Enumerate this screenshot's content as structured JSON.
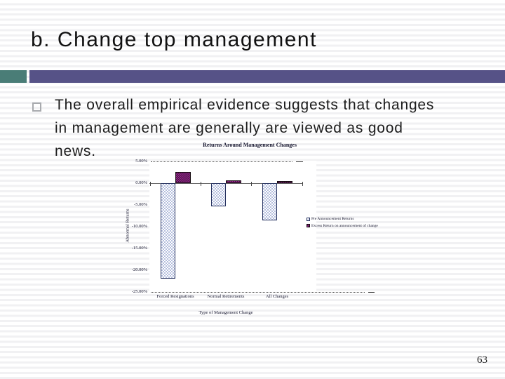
{
  "slide": {
    "title": "b. Change top management",
    "bullet_lines": [
      "The overall empirical evidence suggests that changes",
      "in management are generally are viewed as good",
      "news."
    ],
    "page_number": "63"
  },
  "colors": {
    "band_teal": "#4a7d77",
    "band_purple": "#565287",
    "stripe": "#f1f1f3",
    "bar_pre_fill": "#b4bedd",
    "bar_pre_border": "#26325f",
    "bar_ann_fill": "#8d2483",
    "bar_ann_border": "#15090f",
    "text": "#1c1c1c"
  },
  "chart_data": {
    "type": "bar",
    "title": "Returns Around Management Changes",
    "xlabel": "Type of Management Change",
    "ylabel": "Abnormal Returns",
    "categories": [
      "Forced Resignations",
      "Normal Retirements",
      "All Changes"
    ],
    "series": [
      {
        "name": "Pre Announcement Returns",
        "values": [
          -22.0,
          -5.3,
          -8.6
        ]
      },
      {
        "name": "Excess Return on announcement of change",
        "values": [
          2.6,
          0.6,
          0.5
        ]
      }
    ],
    "ylim": [
      -25,
      5
    ],
    "ytick_labels": [
      "5.00%",
      "0.00%",
      "-5.00%",
      "-10.00%",
      "-15.00%",
      "-20.00%",
      "-25.00%"
    ],
    "ytick_values": [
      5,
      0,
      -5,
      -10,
      -15,
      -20,
      -25
    ],
    "grid": "dotted lines at 5% and -25% only",
    "legend_position": "right"
  }
}
